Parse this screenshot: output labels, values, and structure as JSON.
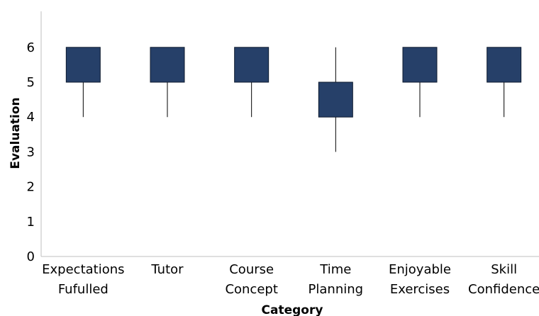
{
  "chart_data": {
    "type": "box",
    "title": "",
    "xlabel": "Category",
    "ylabel": "Evaluation",
    "ylim": [
      0,
      7
    ],
    "yticks": [
      0,
      1,
      2,
      3,
      4,
      5,
      6
    ],
    "grid": false,
    "legend": "none",
    "box_color": "#264069",
    "categories": [
      [
        "Expectations",
        "Fufulled"
      ],
      [
        "Tutor"
      ],
      [
        "Course",
        "Concept"
      ],
      [
        "Time",
        "Planning"
      ],
      [
        "Enjoyable",
        "Exercises"
      ],
      [
        "Skill",
        "Confidence"
      ]
    ],
    "boxes": [
      {
        "min": 4,
        "q1": 5,
        "q3": 6,
        "max": 6
      },
      {
        "min": 4,
        "q1": 5,
        "q3": 6,
        "max": 6
      },
      {
        "min": 4,
        "q1": 5,
        "q3": 6,
        "max": 6
      },
      {
        "min": 3,
        "q1": 4,
        "q3": 5,
        "max": 6
      },
      {
        "min": 4,
        "q1": 5,
        "q3": 6,
        "max": 6
      },
      {
        "min": 4,
        "q1": 5,
        "q3": 6,
        "max": 6
      }
    ]
  }
}
